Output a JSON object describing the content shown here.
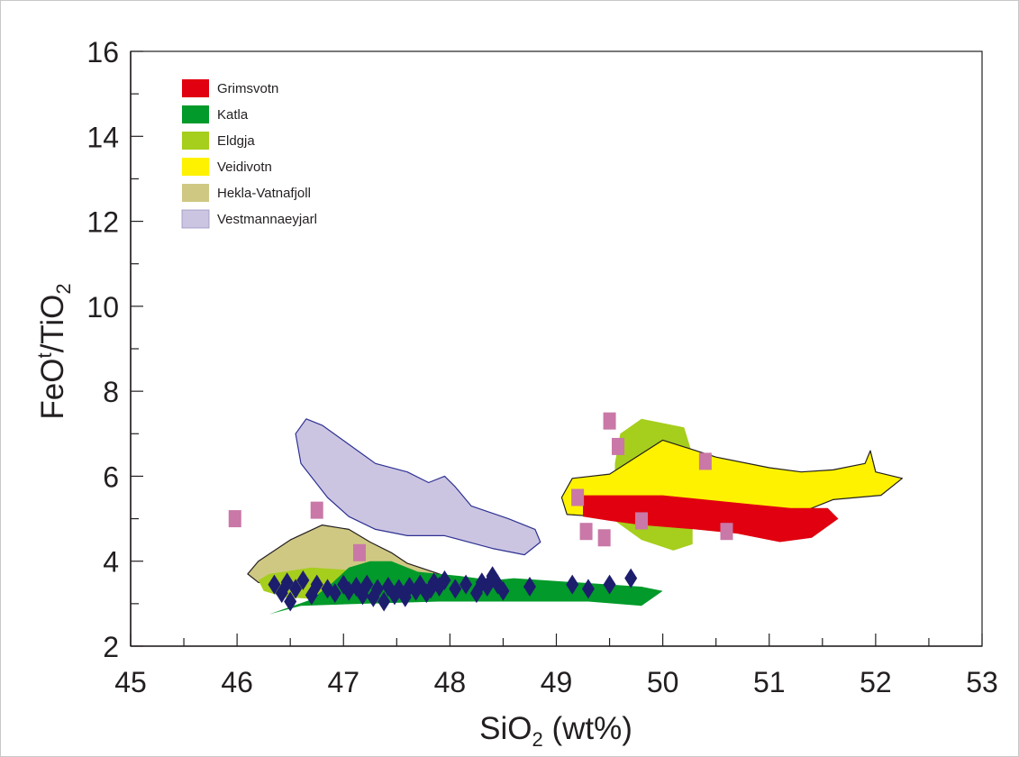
{
  "chart_data": {
    "type": "scatter",
    "xlabel": "SiO2 (wt%)",
    "xlabel_main": "SiO",
    "xlabel_sub": "2",
    "xlabel_tail": " (wt%)",
    "ylabel": "FeOt/TiO2",
    "ylabel_main": "FeO",
    "ylabel_sup": "t",
    "ylabel_mid": "/TiO",
    "ylabel_sub": "2",
    "xlim": [
      45,
      53
    ],
    "ylim": [
      2,
      16
    ],
    "x_ticks": [
      "45",
      "46",
      "47",
      "48",
      "49",
      "50",
      "51",
      "52",
      "53"
    ],
    "y_ticks": [
      "2",
      "4",
      "6",
      "8",
      "10",
      "12",
      "14",
      "16"
    ],
    "legend_position": "top-left",
    "legend": [
      {
        "label": "Grimsvotn",
        "color": "#e0000f"
      },
      {
        "label": "Katla",
        "color": "#029a2a"
      },
      {
        "label": "Eldgja",
        "color": "#a6ce1c"
      },
      {
        "label": "Veidivotn",
        "color": "#fff200"
      },
      {
        "label": "Hekla-Vatnafjoll",
        "color": "#cfc883"
      },
      {
        "label": "Vestmannaeyjarl",
        "color": "#ccc5e2"
      }
    ],
    "fields": [
      {
        "name": "Hekla-Vatnafjoll",
        "color": "#cfc883",
        "stroke": "#231f20",
        "points": [
          [
            46.1,
            3.7
          ],
          [
            46.2,
            4.0
          ],
          [
            46.5,
            4.5
          ],
          [
            46.8,
            4.85
          ],
          [
            47.05,
            4.75
          ],
          [
            47.25,
            4.45
          ],
          [
            47.45,
            4.2
          ],
          [
            47.6,
            3.95
          ],
          [
            47.9,
            3.7
          ],
          [
            48.1,
            3.5
          ],
          [
            47.9,
            3.3
          ],
          [
            47.6,
            3.25
          ],
          [
            47.0,
            3.3
          ],
          [
            46.5,
            3.4
          ],
          [
            46.2,
            3.5
          ]
        ]
      },
      {
        "name": "Eldgja",
        "color": "#a6ce1c",
        "stroke": "none",
        "points": [
          [
            46.3,
            3.7
          ],
          [
            46.7,
            3.85
          ],
          [
            47.0,
            3.8
          ],
          [
            47.5,
            3.7
          ],
          [
            48.0,
            3.5
          ],
          [
            48.2,
            3.3
          ],
          [
            47.8,
            3.1
          ],
          [
            47.3,
            3.0
          ],
          [
            46.8,
            3.1
          ],
          [
            46.45,
            3.15
          ],
          [
            46.25,
            3.3
          ],
          [
            46.2,
            3.55
          ]
        ]
      },
      {
        "name": "Eldgja",
        "color": "#a6ce1c",
        "stroke": "none",
        "points": [
          [
            49.55,
            6.3
          ],
          [
            49.6,
            7.0
          ],
          [
            49.8,
            7.35
          ],
          [
            50.2,
            7.15
          ],
          [
            50.28,
            6.5
          ],
          [
            50.28,
            4.4
          ],
          [
            50.1,
            4.25
          ],
          [
            49.8,
            4.5
          ],
          [
            49.55,
            4.95
          ]
        ]
      },
      {
        "name": "Katla",
        "color": "#029a2a",
        "stroke": "none",
        "points": [
          [
            46.3,
            2.75
          ],
          [
            46.7,
            3.1
          ],
          [
            46.9,
            3.5
          ],
          [
            47.05,
            3.85
          ],
          [
            47.25,
            4.0
          ],
          [
            47.45,
            4.0
          ],
          [
            47.7,
            3.75
          ],
          [
            48.1,
            3.65
          ],
          [
            48.4,
            3.55
          ],
          [
            48.6,
            3.6
          ],
          [
            49.2,
            3.5
          ],
          [
            49.8,
            3.4
          ],
          [
            50.0,
            3.3
          ],
          [
            49.8,
            2.95
          ],
          [
            49.3,
            3.05
          ],
          [
            48.5,
            3.05
          ],
          [
            47.9,
            3.05
          ],
          [
            47.2,
            3.0
          ],
          [
            46.6,
            2.95
          ]
        ]
      },
      {
        "name": "Vestmannaeyjarl",
        "color": "#ccc5e2",
        "stroke": "#2e3192",
        "points": [
          [
            46.55,
            7.0
          ],
          [
            46.65,
            7.35
          ],
          [
            46.8,
            7.2
          ],
          [
            47.05,
            6.75
          ],
          [
            47.3,
            6.3
          ],
          [
            47.6,
            6.1
          ],
          [
            47.8,
            5.85
          ],
          [
            47.95,
            6.0
          ],
          [
            48.05,
            5.75
          ],
          [
            48.2,
            5.3
          ],
          [
            48.55,
            5.0
          ],
          [
            48.8,
            4.75
          ],
          [
            48.85,
            4.45
          ],
          [
            48.7,
            4.15
          ],
          [
            48.4,
            4.3
          ],
          [
            47.95,
            4.6
          ],
          [
            47.6,
            4.6
          ],
          [
            47.3,
            4.75
          ],
          [
            47.05,
            5.05
          ],
          [
            46.85,
            5.5
          ],
          [
            46.6,
            6.3
          ]
        ]
      },
      {
        "name": "Veidivotn",
        "color": "#fff200",
        "stroke": "#231f20",
        "points": [
          [
            49.1,
            5.1
          ],
          [
            49.05,
            5.5
          ],
          [
            49.15,
            5.95
          ],
          [
            49.5,
            6.05
          ],
          [
            50.0,
            6.85
          ],
          [
            50.5,
            6.45
          ],
          [
            51.0,
            6.2
          ],
          [
            51.3,
            6.1
          ],
          [
            51.6,
            6.15
          ],
          [
            51.9,
            6.3
          ],
          [
            51.95,
            6.6
          ],
          [
            52.0,
            6.1
          ],
          [
            52.25,
            5.95
          ],
          [
            52.05,
            5.55
          ],
          [
            51.6,
            5.45
          ],
          [
            51.15,
            5.0
          ],
          [
            50.7,
            4.75
          ],
          [
            50.35,
            4.85
          ],
          [
            49.9,
            5.05
          ],
          [
            49.4,
            5.05
          ]
        ]
      },
      {
        "name": "Grimsvotn",
        "color": "#e0000f",
        "stroke": "none",
        "points": [
          [
            49.25,
            5.05
          ],
          [
            49.25,
            5.55
          ],
          [
            49.6,
            5.55
          ],
          [
            50.0,
            5.55
          ],
          [
            50.4,
            5.45
          ],
          [
            50.8,
            5.35
          ],
          [
            51.2,
            5.25
          ],
          [
            51.55,
            5.25
          ],
          [
            51.65,
            5.0
          ],
          [
            51.4,
            4.55
          ],
          [
            51.1,
            4.45
          ],
          [
            50.7,
            4.65
          ],
          [
            50.3,
            4.75
          ],
          [
            49.8,
            4.85
          ],
          [
            49.5,
            4.95
          ]
        ]
      }
    ],
    "series": [
      {
        "marker": "diamond",
        "color": "#1d1d6e",
        "x": [
          46.35,
          46.42,
          46.47,
          46.5,
          46.55,
          46.62,
          46.7,
          46.75,
          46.85,
          46.92,
          47.0,
          47.05,
          47.12,
          47.18,
          47.22,
          47.28,
          47.32,
          47.38,
          47.42,
          47.48,
          47.52,
          47.58,
          47.62,
          47.68,
          47.72,
          47.78,
          47.82,
          47.85,
          47.9,
          47.95,
          48.05,
          48.15,
          48.25,
          48.3,
          48.35,
          48.4,
          48.45,
          48.5,
          48.75,
          49.15,
          49.3,
          49.5,
          49.7
        ],
        "y": [
          3.45,
          3.25,
          3.5,
          3.05,
          3.35,
          3.55,
          3.2,
          3.45,
          3.35,
          3.25,
          3.45,
          3.3,
          3.4,
          3.2,
          3.45,
          3.15,
          3.35,
          3.05,
          3.4,
          3.2,
          3.35,
          3.15,
          3.4,
          3.3,
          3.45,
          3.25,
          3.35,
          3.5,
          3.4,
          3.55,
          3.35,
          3.45,
          3.25,
          3.5,
          3.4,
          3.65,
          3.45,
          3.3,
          3.4,
          3.45,
          3.35,
          3.45,
          3.6
        ]
      },
      {
        "marker": "square",
        "color": "#c978a8",
        "x": [
          45.98,
          46.75,
          47.15,
          49.2,
          49.28,
          49.45,
          49.5,
          49.58,
          49.8,
          50.4,
          50.6
        ],
        "y": [
          5.0,
          5.2,
          4.2,
          5.5,
          4.7,
          4.55,
          7.3,
          6.7,
          4.95,
          6.35,
          4.7
        ]
      }
    ]
  }
}
